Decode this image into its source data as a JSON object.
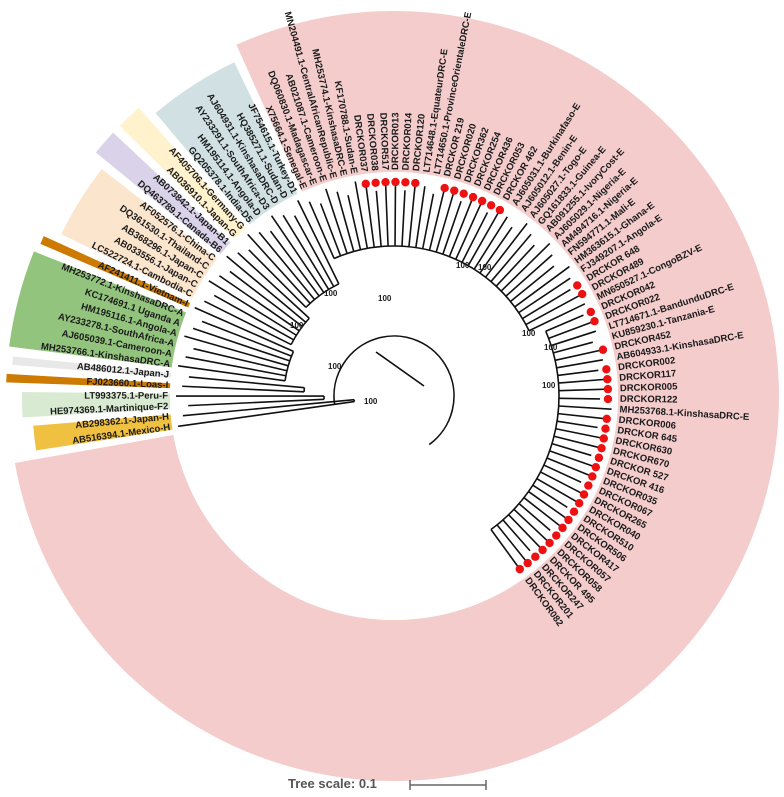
{
  "sectors": [
    {
      "genotype": "E",
      "color": "#f4cccc"
    },
    {
      "genotype": "H",
      "color": "#f0c040"
    },
    {
      "genotype": "F",
      "color": "#d9ead3"
    },
    {
      "genotype": "I",
      "color": "#cc7a00"
    },
    {
      "genotype": "J",
      "color": "#e8e8e8"
    },
    {
      "genotype": "A",
      "color": "#93c47d"
    },
    {
      "genotype": "I",
      "color": "#cc7a00"
    },
    {
      "genotype": "C",
      "color": "#fce5cd"
    },
    {
      "genotype": "B",
      "color": "#d9d2e9"
    },
    {
      "genotype": "G",
      "color": "#fff2cc"
    },
    {
      "genotype": "D",
      "color": "#d0e0e3"
    }
  ],
  "leaves": [
    "AB516394.1-Mexico-H",
    "AB298362.1-Japan-H",
    "HE974369.1-Martinique-F2",
    "LT993375.1-Peru-F",
    "FJ023660.1-Loas-I",
    "AB486012.1-Japan-J",
    "MH253766.1-KinshasaDRC-A",
    "AJ605039.1-Cameroon-A",
    "AY233278.1-SouthAfrica-A",
    "HM195116.1-Angola-A",
    "KC174691.1 Uganda A",
    "MH253772.1-KinshasaDRC-A",
    "AF241411.1-Vietnam-I",
    "LC522724.1-Cambodia-C",
    "AB033556.1-Japan-C",
    "AB368296.1-Japan-C",
    "DQ361530.1-Thailand-C",
    "AF052576.1-China-C",
    "DQ463789.1-Canada-B6",
    "AB073842.1-Japan-B1",
    "AB036910.1-Japan-G",
    "AF405706.1-Germany-G",
    "GQ205378.1-India-D5",
    "HM195114.1-Angola-D",
    "AY233291.1-SouthAfrica-D3",
    "AJ604931.1-KinshasaDRC-D",
    "HQ385271.1-Sudan-D",
    "JF754615.1-Turkey-D1",
    "X75664.1-Senegal-E",
    "DQ060830.1-Madagascar-E",
    "AB021087.1-Cameroon-E",
    "MN204491.1-CentralAfricanRepublic-E",
    "MH253774.1-KinshasaDRC-E",
    "KF170788.1-Sudan-E",
    "DRCKOR037",
    "DRCKOR038",
    "DRCKOR517",
    "DRCKOR013",
    "DRCKOR014",
    "DRCKOR120",
    "LT714648.1-EquateurDRC-E",
    "LT714650.1-ProvinceOrientaleDRC-E",
    "DRCKOR 219",
    "DRCKOR020",
    "DRCKOR362",
    "DRCKOR254",
    "DRCKOR436",
    "DRCKOR053",
    "DRCKOR 462",
    "AJ605031.1-Burkinafaso-E",
    "AJ605012.1-Benin-E",
    "AJ605027.1-Togo-E",
    "GQ161833.1-Guinea-E",
    "AB091255.1-IvoryCost-E",
    "AJ605029.1-Nigeria-E",
    "AM494716.1-Nigeria-E",
    "FN594771.1-Mali-E",
    "HM363615.1-Ghana-E",
    "FJ349207.1-Angola-E",
    "DRCKOR 648",
    "DRCKOR489",
    "MN650527.1-CongoBZV-E",
    "DRCKOR042",
    "DRCKOR022",
    "LT714671.1-BandunduDRC-E",
    "KU859230.1-Tanzania-E",
    "DRCKOR452",
    "AB604933.1-KinshasaDRC-E",
    "DRCKOR002",
    "DRCKOR117",
    "DRCKOR005",
    "DRCKOR122",
    "MH253768.1-KinshasaDRC-E",
    "DRCKOR006",
    "DRCKOR 645",
    "DRCKOR630",
    "DRCKOR670",
    "DRCKOR 527",
    "DRCKOR 416",
    "DRCKOR035",
    "DRCKOR067",
    "DRCKOR265",
    "DRCKOR040",
    "DRCKOR510",
    "DRCKOR506",
    "DRCKOR417",
    "DRCKOR057",
    "DRCKOR058",
    "DRCKOR 495",
    "DRCKOR247",
    "DRCKOR201",
    "DRCKOR082"
  ],
  "bootstrap": [
    "100",
    "100",
    "100",
    "100",
    "100",
    "100",
    "100",
    "100",
    "100",
    "100"
  ],
  "scale": {
    "label": "Tree scale: 0.1"
  }
}
